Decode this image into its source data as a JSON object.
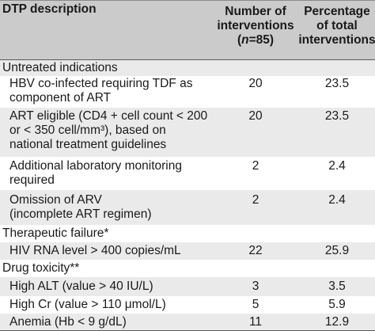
{
  "header": {
    "col1": "DTP description",
    "col2_line1": "Number of",
    "col2_line2": "interventions",
    "col2_line3a": "(",
    "col2_line3n": "n",
    "col2_line3b": "=85)",
    "col3_line1": "Percentage",
    "col3_line2": "of total",
    "col3_line3": "interventions"
  },
  "sections": [
    {
      "title": "Untreated indications",
      "rows": [
        {
          "lines": [
            "HBV co-infected requiring TDF as",
            "component of ART"
          ],
          "number": "20",
          "percent": "23.5"
        },
        {
          "lines": [
            "ART eligible (CD4 + cell count < 200",
            "or < 350 cell/mm³), based on",
            "national treatment guidelines"
          ],
          "number": "20",
          "percent": "23.5"
        },
        {
          "lines": [
            "Additional laboratory monitoring",
            "required"
          ],
          "number": "2",
          "percent": "2.4"
        },
        {
          "lines": [
            "Omission of ARV",
            "(incomplete ART regimen)"
          ],
          "number": "2",
          "percent": "2.4"
        }
      ]
    },
    {
      "title": "Therapeutic failure*",
      "rows": [
        {
          "lines": [
            "HIV RNA level > 400 copies/mL"
          ],
          "number": "22",
          "percent": "25.9"
        }
      ]
    },
    {
      "title": "Drug toxicity**",
      "rows": [
        {
          "lines": [
            "High ALT (value > 40 IU/L)"
          ],
          "number": "3",
          "percent": "3.5"
        },
        {
          "lines": [
            "High Cr (value > 110 μmol/L)"
          ],
          "number": "5",
          "percent": "5.9"
        },
        {
          "lines": [
            "Anemia (Hb < 9 g/dL)"
          ],
          "number": "11",
          "percent": "12.9"
        }
      ]
    }
  ]
}
